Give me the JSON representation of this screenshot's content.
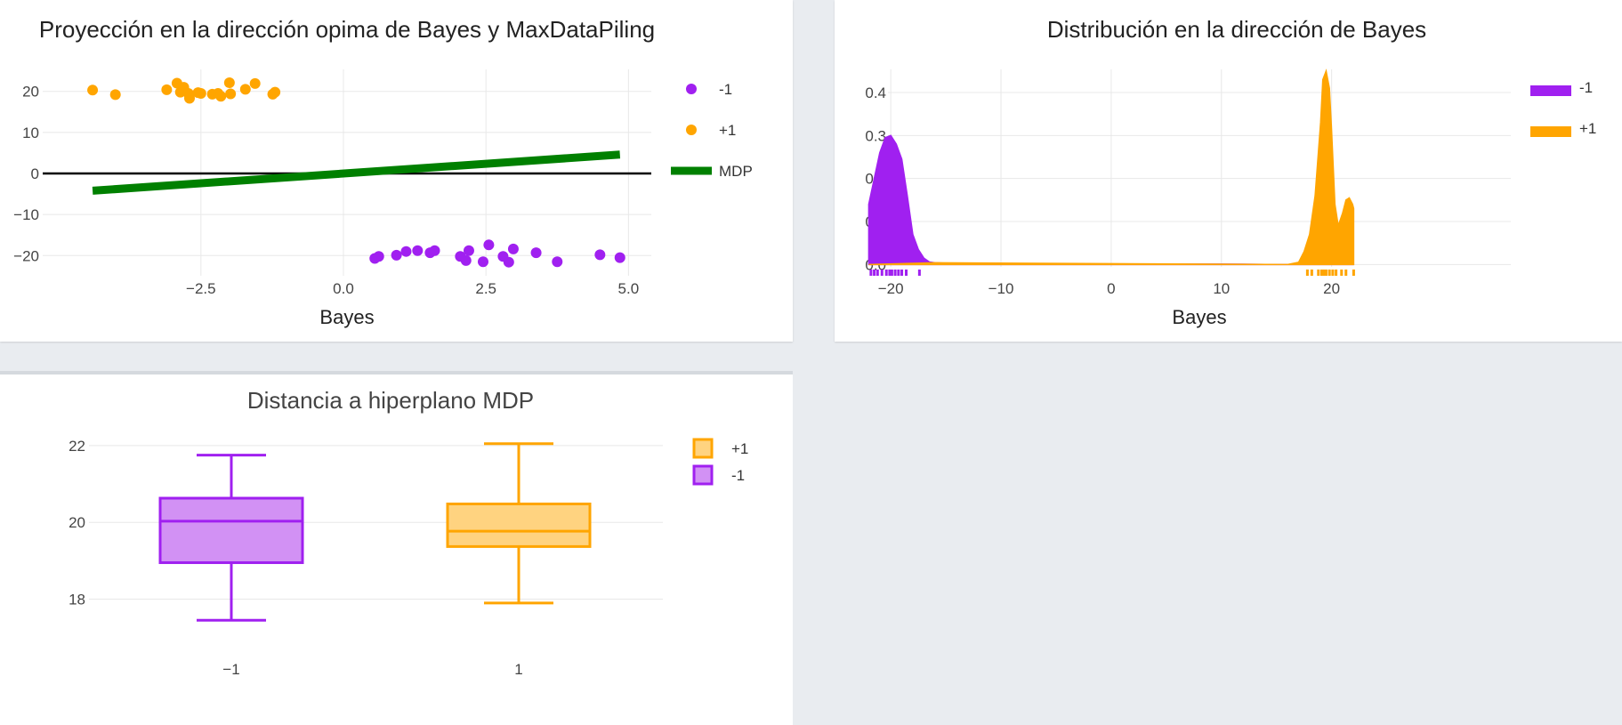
{
  "colors": {
    "neg": "#a020f0",
    "pos": "#ffa500",
    "mdp": "#008000",
    "zero_line": "#000000"
  },
  "chart_data": [
    {
      "type": "scatter",
      "title": "Proyección en la dirección opima de Bayes y MaxDataPiling",
      "xlabel": "Bayes",
      "ylabel": "",
      "xlim": [
        -5.4,
        5.4
      ],
      "ylim": [
        -26,
        26
      ],
      "xticks": [
        {
          "v": -2.5,
          "label": "−2.5"
        },
        {
          "v": 0,
          "label": "0.0"
        },
        {
          "v": 2.5,
          "label": "2.5"
        },
        {
          "v": 5,
          "label": "5.0"
        }
      ],
      "yticks": [
        {
          "v": 20,
          "label": "20"
        },
        {
          "v": 10,
          "label": "10"
        },
        {
          "v": 0,
          "label": "0"
        },
        {
          "v": -10,
          "label": "−10"
        },
        {
          "v": -20,
          "label": "−20"
        }
      ],
      "legend": [
        {
          "name": "-1",
          "symbol": "dot",
          "color": "#a020f0"
        },
        {
          "name": "+1",
          "symbol": "dot",
          "color": "#ffa500"
        },
        {
          "name": "MDP",
          "symbol": "line",
          "color": "#008000"
        }
      ],
      "series": [
        {
          "name": "-1",
          "color": "#a020f0",
          "points": [
            [
              0.55,
              -20.7
            ],
            [
              0.62,
              -20.2
            ],
            [
              0.93,
              -19.9
            ],
            [
              1.1,
              -19.0
            ],
            [
              1.3,
              -18.8
            ],
            [
              1.52,
              -19.3
            ],
            [
              1.6,
              -18.8
            ],
            [
              2.05,
              -20.2
            ],
            [
              2.15,
              -21.2
            ],
            [
              2.2,
              -18.8
            ],
            [
              2.45,
              -21.5
            ],
            [
              2.55,
              -17.4
            ],
            [
              2.8,
              -20.2
            ],
            [
              2.9,
              -21.6
            ],
            [
              2.98,
              -18.4
            ],
            [
              3.38,
              -19.3
            ],
            [
              3.75,
              -21.5
            ],
            [
              4.5,
              -19.8
            ],
            [
              4.85,
              -20.5
            ]
          ]
        },
        {
          "name": "+1",
          "color": "#ffa500",
          "points": [
            [
              -4.4,
              20.3
            ],
            [
              -4.0,
              19.2
            ],
            [
              -3.1,
              20.4
            ],
            [
              -2.92,
              22.0
            ],
            [
              -2.86,
              19.8
            ],
            [
              -2.8,
              21.0
            ],
            [
              -2.72,
              19.5
            ],
            [
              -2.7,
              18.3
            ],
            [
              -2.55,
              19.7
            ],
            [
              -2.5,
              19.5
            ],
            [
              -2.3,
              19.3
            ],
            [
              -2.2,
              19.5
            ],
            [
              -2.15,
              18.8
            ],
            [
              -2.0,
              22.1
            ],
            [
              -1.98,
              19.4
            ],
            [
              -1.72,
              20.5
            ],
            [
              -1.55,
              21.9
            ],
            [
              -1.24,
              19.3
            ],
            [
              -1.2,
              19.8
            ]
          ]
        },
        {
          "name": "MDP",
          "color": "#008000",
          "line": [
            [
              -4.4,
              -4.2
            ],
            [
              4.85,
              4.6
            ]
          ]
        }
      ],
      "zero_line": true
    },
    {
      "type": "area",
      "title": "Distribución en la dirección de Bayes",
      "xlabel": "Bayes",
      "ylabel": "",
      "xlim": [
        -23,
        23.5
      ],
      "ylim": [
        -0.02,
        0.46
      ],
      "xticks": [
        {
          "v": -20,
          "label": "−20"
        },
        {
          "v": -10,
          "label": "−10"
        },
        {
          "v": 0,
          "label": "0"
        },
        {
          "v": 10,
          "label": "10"
        },
        {
          "v": 20,
          "label": "20"
        }
      ],
      "yticks": [
        {
          "v": 0.4,
          "label": "0.4"
        },
        {
          "v": 0.3,
          "label": "0.3"
        },
        {
          "v": 0.2,
          "label": "0.2"
        },
        {
          "v": 0.1,
          "label": "0.1"
        },
        {
          "v": 0,
          "label": "0.0"
        }
      ],
      "legend": [
        {
          "name": "-1",
          "color": "#a020f0"
        },
        {
          "name": "+1",
          "color": "#ffa500"
        }
      ],
      "series": [
        {
          "name": "-1",
          "color": "#a020f0",
          "x": [
            -22.0,
            -21.5,
            -21.0,
            -20.5,
            -20.0,
            -19.5,
            -19.0,
            -18.5,
            -18.0,
            -17.5,
            -17.0,
            -16.5,
            -16.0,
            -15.0,
            -10.0,
            0.0,
            10.0,
            15.0,
            18.0,
            22.0
          ],
          "y": [
            0.14,
            0.2,
            0.26,
            0.295,
            0.3,
            0.28,
            0.245,
            0.16,
            0.07,
            0.035,
            0.015,
            0.006,
            0.004,
            0.003,
            0.002,
            0.001,
            0.001,
            0.0,
            0.0,
            0.0
          ]
        },
        {
          "name": "+1",
          "color": "#ffa500",
          "x": [
            -22.0,
            -16.0,
            0.0,
            16.0,
            17.0,
            17.5,
            18.0,
            18.5,
            19.0,
            19.2,
            19.5,
            19.8,
            20.0,
            20.3,
            20.6,
            21.0,
            21.3,
            21.6,
            21.9,
            22.0
          ],
          "y": [
            0.0,
            0.004,
            0.002,
            0.0,
            0.005,
            0.03,
            0.07,
            0.16,
            0.33,
            0.43,
            0.45,
            0.41,
            0.31,
            0.14,
            0.09,
            0.12,
            0.15,
            0.155,
            0.14,
            0.13
          ]
        }
      ],
      "rugs": [
        {
          "name": "-1",
          "color": "#a020f0",
          "x": [
            -21.8,
            -21.5,
            -21.2,
            -20.8,
            -20.4,
            -20.1,
            -19.9,
            -19.6,
            -19.3,
            -19.0,
            -18.6,
            -17.4
          ]
        },
        {
          "name": "+1",
          "color": "#ffa500",
          "x": [
            17.8,
            18.2,
            18.8,
            19.1,
            19.3,
            19.5,
            19.8,
            20.1,
            20.4,
            20.9,
            21.3,
            22.0
          ]
        }
      ]
    },
    {
      "type": "box",
      "title": "Distancia a hiperplano MDP",
      "xlabel": "",
      "ylabel": "",
      "ylim": [
        16.9,
        22.6
      ],
      "categories": [
        "−1",
        "1"
      ],
      "yticks": [
        {
          "v": 22,
          "label": "22"
        },
        {
          "v": 20,
          "label": "20"
        },
        {
          "v": 18,
          "label": "18"
        }
      ],
      "legend": [
        {
          "name": "+1",
          "color": "#ffa500"
        },
        {
          "name": "-1",
          "color": "#a020f0"
        }
      ],
      "series": [
        {
          "name": "-1",
          "category": "−1",
          "color": "#a020f0",
          "fill": "#d291f4",
          "min": 17.45,
          "q1": 18.95,
          "median": 20.03,
          "q3": 20.63,
          "max": 21.75
        },
        {
          "name": "+1",
          "category": "1",
          "color": "#ffa500",
          "fill": "#ffd380",
          "min": 17.9,
          "q1": 19.37,
          "median": 19.77,
          "q3": 20.48,
          "max": 22.05
        }
      ]
    }
  ]
}
